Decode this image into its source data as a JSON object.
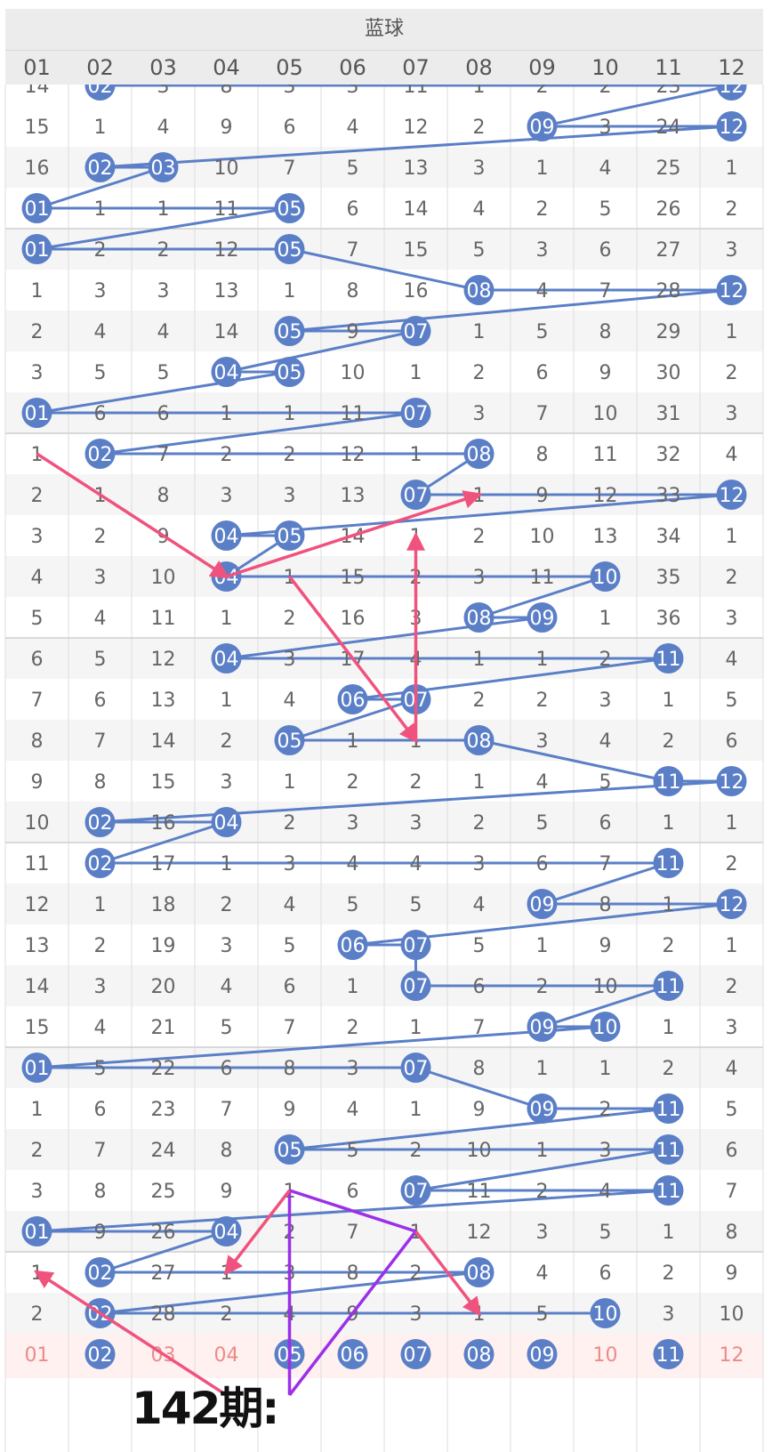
{
  "header": {
    "title": "蓝球"
  },
  "columns": [
    "01",
    "02",
    "03",
    "04",
    "05",
    "06",
    "07",
    "08",
    "09",
    "10",
    "11",
    "12"
  ],
  "period_label": "142期:",
  "colors": {
    "ball": "#5b7fc7",
    "line": "#5b7fc7",
    "pink_arrow": "#f0527e",
    "purple": "#9b30e8",
    "row_alt": "#f5f5f5",
    "stat_text": "#ec8a8a",
    "stat_bg": "#fff1ef"
  },
  "chart_data": {
    "type": "table",
    "title": "蓝球",
    "top_partial_row": [
      "14",
      "02",
      "3",
      "8",
      "3",
      "3",
      "11",
      "1",
      "2",
      "2",
      "23",
      "12"
    ],
    "top_partial_balls": [
      2,
      12
    ],
    "rows": [
      {
        "cells": [
          "15",
          "1",
          "4",
          "9",
          "6",
          "4",
          "12",
          "2",
          "09",
          "3",
          "24",
          "12"
        ],
        "balls": [
          9,
          12
        ]
      },
      {
        "cells": [
          "16",
          "02",
          "03",
          "10",
          "7",
          "5",
          "13",
          "3",
          "1",
          "4",
          "25",
          "1"
        ],
        "balls": [
          2,
          3
        ]
      },
      {
        "cells": [
          "01",
          "1",
          "1",
          "11",
          "05",
          "6",
          "14",
          "4",
          "2",
          "5",
          "26",
          "2"
        ],
        "balls": [
          1,
          5
        ]
      },
      {
        "cells": [
          "01",
          "2",
          "2",
          "12",
          "05",
          "7",
          "15",
          "5",
          "3",
          "6",
          "27",
          "3"
        ],
        "balls": [
          1,
          5
        ]
      },
      {
        "cells": [
          "1",
          "3",
          "3",
          "13",
          "1",
          "8",
          "16",
          "08",
          "4",
          "7",
          "28",
          "12"
        ],
        "balls": [
          8,
          12
        ]
      },
      {
        "cells": [
          "2",
          "4",
          "4",
          "14",
          "05",
          "9",
          "07",
          "1",
          "5",
          "8",
          "29",
          "1"
        ],
        "balls": [
          5,
          7
        ]
      },
      {
        "cells": [
          "3",
          "5",
          "5",
          "04",
          "05",
          "10",
          "1",
          "2",
          "6",
          "9",
          "30",
          "2"
        ],
        "balls": [
          4,
          5
        ]
      },
      {
        "cells": [
          "01",
          "6",
          "6",
          "1",
          "1",
          "11",
          "07",
          "3",
          "7",
          "10",
          "31",
          "3"
        ],
        "balls": [
          1,
          7
        ]
      },
      {
        "cells": [
          "1",
          "02",
          "7",
          "2",
          "2",
          "12",
          "1",
          "08",
          "8",
          "11",
          "32",
          "4"
        ],
        "balls": [
          2,
          8
        ]
      },
      {
        "cells": [
          "2",
          "1",
          "8",
          "3",
          "3",
          "13",
          "07",
          "1",
          "9",
          "12",
          "33",
          "12"
        ],
        "balls": [
          7,
          12
        ]
      },
      {
        "cells": [
          "3",
          "2",
          "9",
          "04",
          "05",
          "14",
          "1",
          "2",
          "10",
          "13",
          "34",
          "1"
        ],
        "balls": [
          4,
          5
        ]
      },
      {
        "cells": [
          "4",
          "3",
          "10",
          "04",
          "1",
          "15",
          "2",
          "3",
          "11",
          "10",
          "35",
          "2"
        ],
        "balls": [
          4,
          10
        ]
      },
      {
        "cells": [
          "5",
          "4",
          "11",
          "1",
          "2",
          "16",
          "3",
          "08",
          "09",
          "1",
          "36",
          "3"
        ],
        "balls": [
          8,
          9
        ]
      },
      {
        "cells": [
          "6",
          "5",
          "12",
          "04",
          "3",
          "17",
          "4",
          "1",
          "1",
          "2",
          "11",
          "4"
        ],
        "balls": [
          4,
          11
        ]
      },
      {
        "cells": [
          "7",
          "6",
          "13",
          "1",
          "4",
          "06",
          "07",
          "2",
          "2",
          "3",
          "1",
          "5"
        ],
        "balls": [
          6,
          7
        ]
      },
      {
        "cells": [
          "8",
          "7",
          "14",
          "2",
          "05",
          "1",
          "1",
          "08",
          "3",
          "4",
          "2",
          "6"
        ],
        "balls": [
          5,
          8
        ]
      },
      {
        "cells": [
          "9",
          "8",
          "15",
          "3",
          "1",
          "2",
          "2",
          "1",
          "4",
          "5",
          "11",
          "12"
        ],
        "balls": [
          11,
          12
        ]
      },
      {
        "cells": [
          "10",
          "02",
          "16",
          "04",
          "2",
          "3",
          "3",
          "2",
          "5",
          "6",
          "1",
          "1"
        ],
        "balls": [
          2,
          4
        ]
      },
      {
        "cells": [
          "11",
          "02",
          "17",
          "1",
          "3",
          "4",
          "4",
          "3",
          "6",
          "7",
          "11",
          "2"
        ],
        "balls": [
          2,
          11
        ]
      },
      {
        "cells": [
          "12",
          "1",
          "18",
          "2",
          "4",
          "5",
          "5",
          "4",
          "09",
          "8",
          "1",
          "12"
        ],
        "balls": [
          9,
          12
        ]
      },
      {
        "cells": [
          "13",
          "2",
          "19",
          "3",
          "5",
          "06",
          "07",
          "5",
          "1",
          "9",
          "2",
          "1"
        ],
        "balls": [
          6,
          7
        ]
      },
      {
        "cells": [
          "14",
          "3",
          "20",
          "4",
          "6",
          "1",
          "07",
          "6",
          "2",
          "10",
          "11",
          "2"
        ],
        "balls": [
          7,
          11
        ]
      },
      {
        "cells": [
          "15",
          "4",
          "21",
          "5",
          "7",
          "2",
          "1",
          "7",
          "09",
          "10",
          "1",
          "3"
        ],
        "balls": [
          9,
          10
        ]
      },
      {
        "cells": [
          "01",
          "5",
          "22",
          "6",
          "8",
          "3",
          "07",
          "8",
          "1",
          "1",
          "2",
          "4"
        ],
        "balls": [
          1,
          7
        ]
      },
      {
        "cells": [
          "1",
          "6",
          "23",
          "7",
          "9",
          "4",
          "1",
          "9",
          "09",
          "2",
          "11",
          "5"
        ],
        "balls": [
          9,
          11
        ]
      },
      {
        "cells": [
          "2",
          "7",
          "24",
          "8",
          "05",
          "5",
          "2",
          "10",
          "1",
          "3",
          "11",
          "6"
        ],
        "balls": [
          5,
          11
        ]
      },
      {
        "cells": [
          "3",
          "8",
          "25",
          "9",
          "1",
          "6",
          "07",
          "11",
          "2",
          "4",
          "11",
          "7"
        ],
        "balls": [
          7,
          11
        ]
      },
      {
        "cells": [
          "01",
          "9",
          "26",
          "04",
          "2",
          "7",
          "1",
          "12",
          "3",
          "5",
          "1",
          "8"
        ],
        "balls": [
          1,
          4
        ]
      },
      {
        "cells": [
          "1",
          "02",
          "27",
          "1",
          "3",
          "8",
          "2",
          "08",
          "4",
          "6",
          "2",
          "9"
        ],
        "balls": [
          2,
          8
        ]
      },
      {
        "cells": [
          "2",
          "02",
          "28",
          "2",
          "4",
          "9",
          "3",
          "1",
          "5",
          "10",
          "3",
          "10"
        ],
        "balls": [
          2,
          10
        ]
      }
    ],
    "stat_row": {
      "cells": [
        "01",
        "02",
        "03",
        "04",
        "05",
        "06",
        "07",
        "08",
        "09",
        "10",
        "11",
        "12"
      ],
      "balls": [
        2,
        5,
        6,
        7,
        8,
        9,
        11
      ]
    },
    "arrows_pink": [
      [
        [
          8,
          1
        ],
        [
          11,
          4
        ]
      ],
      [
        [
          11,
          4
        ],
        [
          9,
          8
        ]
      ],
      [
        [
          11,
          5
        ],
        [
          15,
          7
        ]
      ],
      [
        [
          15,
          7
        ],
        [
          10,
          7
        ]
      ],
      [
        [
          26,
          5
        ],
        [
          28,
          4
        ]
      ],
      [
        [
          27,
          7
        ],
        [
          29,
          8
        ]
      ],
      [
        [
          31,
          4
        ],
        [
          28,
          1
        ]
      ]
    ],
    "lines_purple": [
      [
        [
          26,
          5
        ],
        [
          27,
          7
        ]
      ],
      [
        [
          27,
          7
        ],
        [
          31,
          5
        ]
      ],
      [
        [
          26,
          5
        ],
        [
          31,
          5
        ]
      ]
    ]
  }
}
